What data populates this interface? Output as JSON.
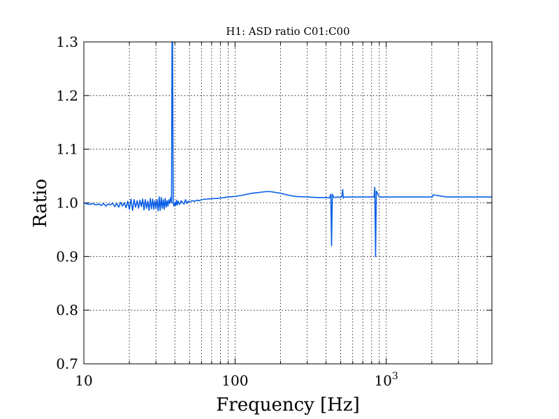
{
  "chart_data": {
    "type": "line",
    "title": "H1:  ASD ratio C01:C00",
    "xlabel": "Frequency [Hz]",
    "ylabel": "Ratio",
    "xscale": "log",
    "xlim": [
      10,
      5000
    ],
    "ylim": [
      0.7,
      1.3
    ],
    "grid": true,
    "x_ticks": [
      {
        "value": 10,
        "label": "10"
      },
      {
        "value": 100,
        "label": "100"
      },
      {
        "value": 1000,
        "label": "10",
        "exponent": "3"
      }
    ],
    "y_ticks": [
      "0.7",
      "0.8",
      "0.9",
      "1.0",
      "1.1",
      "1.2",
      "1.3"
    ],
    "series": [
      {
        "color": "#0a5fe6",
        "x": [
          10,
          10.5,
          11,
          11.5,
          12,
          12.5,
          13,
          13.5,
          14,
          14.5,
          15,
          15.5,
          16,
          16.5,
          17,
          17.5,
          18,
          18.5,
          19,
          19.5,
          20,
          20.5,
          21,
          21.5,
          22,
          22.5,
          23,
          23.5,
          24,
          24.5,
          25,
          25.5,
          26,
          26.5,
          27,
          27.5,
          28,
          28.5,
          29,
          29.5,
          30,
          30.5,
          31,
          31.5,
          32,
          32.5,
          33,
          33.5,
          34,
          34.5,
          35,
          35.5,
          36,
          36.5,
          37,
          37.5,
          38,
          38.3,
          38.6,
          39,
          39.5,
          40,
          40.5,
          41,
          41.5,
          42,
          43,
          44,
          45,
          46,
          47,
          48,
          49,
          50,
          52,
          54,
          56,
          58,
          60,
          63,
          66,
          70,
          75,
          80,
          85,
          90,
          100,
          110,
          120,
          130,
          140,
          150,
          160,
          170,
          180,
          200,
          220,
          250,
          300,
          350,
          400,
          420,
          430,
          435,
          440,
          450,
          480,
          500,
          510,
          515,
          520,
          530,
          600,
          700,
          800,
          830,
          840,
          850,
          860,
          900,
          1000,
          1500,
          2000,
          2020,
          2040,
          2500,
          3000,
          4000,
          5000
        ],
        "y": [
          1.0,
          0.998,
          0.997,
          0.999,
          0.996,
          0.998,
          0.995,
          0.999,
          0.994,
          0.998,
          0.996,
          1.0,
          0.993,
          0.999,
          0.992,
          1.001,
          0.994,
          1.0,
          0.991,
          1.003,
          0.988,
          1.007,
          0.986,
          1.006,
          0.992,
          1.004,
          0.99,
          1.005,
          0.993,
          1.007,
          0.987,
          1.006,
          0.99,
          1.003,
          0.986,
          1.008,
          0.989,
          1.007,
          0.988,
          1.004,
          0.99,
          1.006,
          0.985,
          1.011,
          0.986,
          1.01,
          0.99,
          1.006,
          0.988,
          1.008,
          0.992,
          1.004,
          0.994,
          1.006,
          0.999,
          1.01,
          1.0,
          1.3,
          1.3,
          0.999,
          0.994,
          1.001,
          0.995,
          1.005,
          0.996,
          1.003,
          0.997,
          1.004,
          1.0,
          0.998,
          1.006,
          0.999,
          1.003,
          1.002,
          1.004,
          1.003,
          1.005,
          1.004,
          1.006,
          1.007,
          1.007,
          1.008,
          1.008,
          1.009,
          1.01,
          1.011,
          1.012,
          1.014,
          1.016,
          1.018,
          1.019,
          1.02,
          1.021,
          1.021,
          1.02,
          1.018,
          1.015,
          1.012,
          1.011,
          1.01,
          1.01,
          1.009,
          1.016,
          0.92,
          1.016,
          1.01,
          1.011,
          1.01,
          1.013,
          1.025,
          1.009,
          1.011,
          1.011,
          1.011,
          1.011,
          1.011,
          1.029,
          0.9,
          1.022,
          1.011,
          1.011,
          1.011,
          1.011,
          1.011,
          1.015,
          1.011,
          1.011,
          1.011,
          1.011
        ]
      }
    ]
  }
}
